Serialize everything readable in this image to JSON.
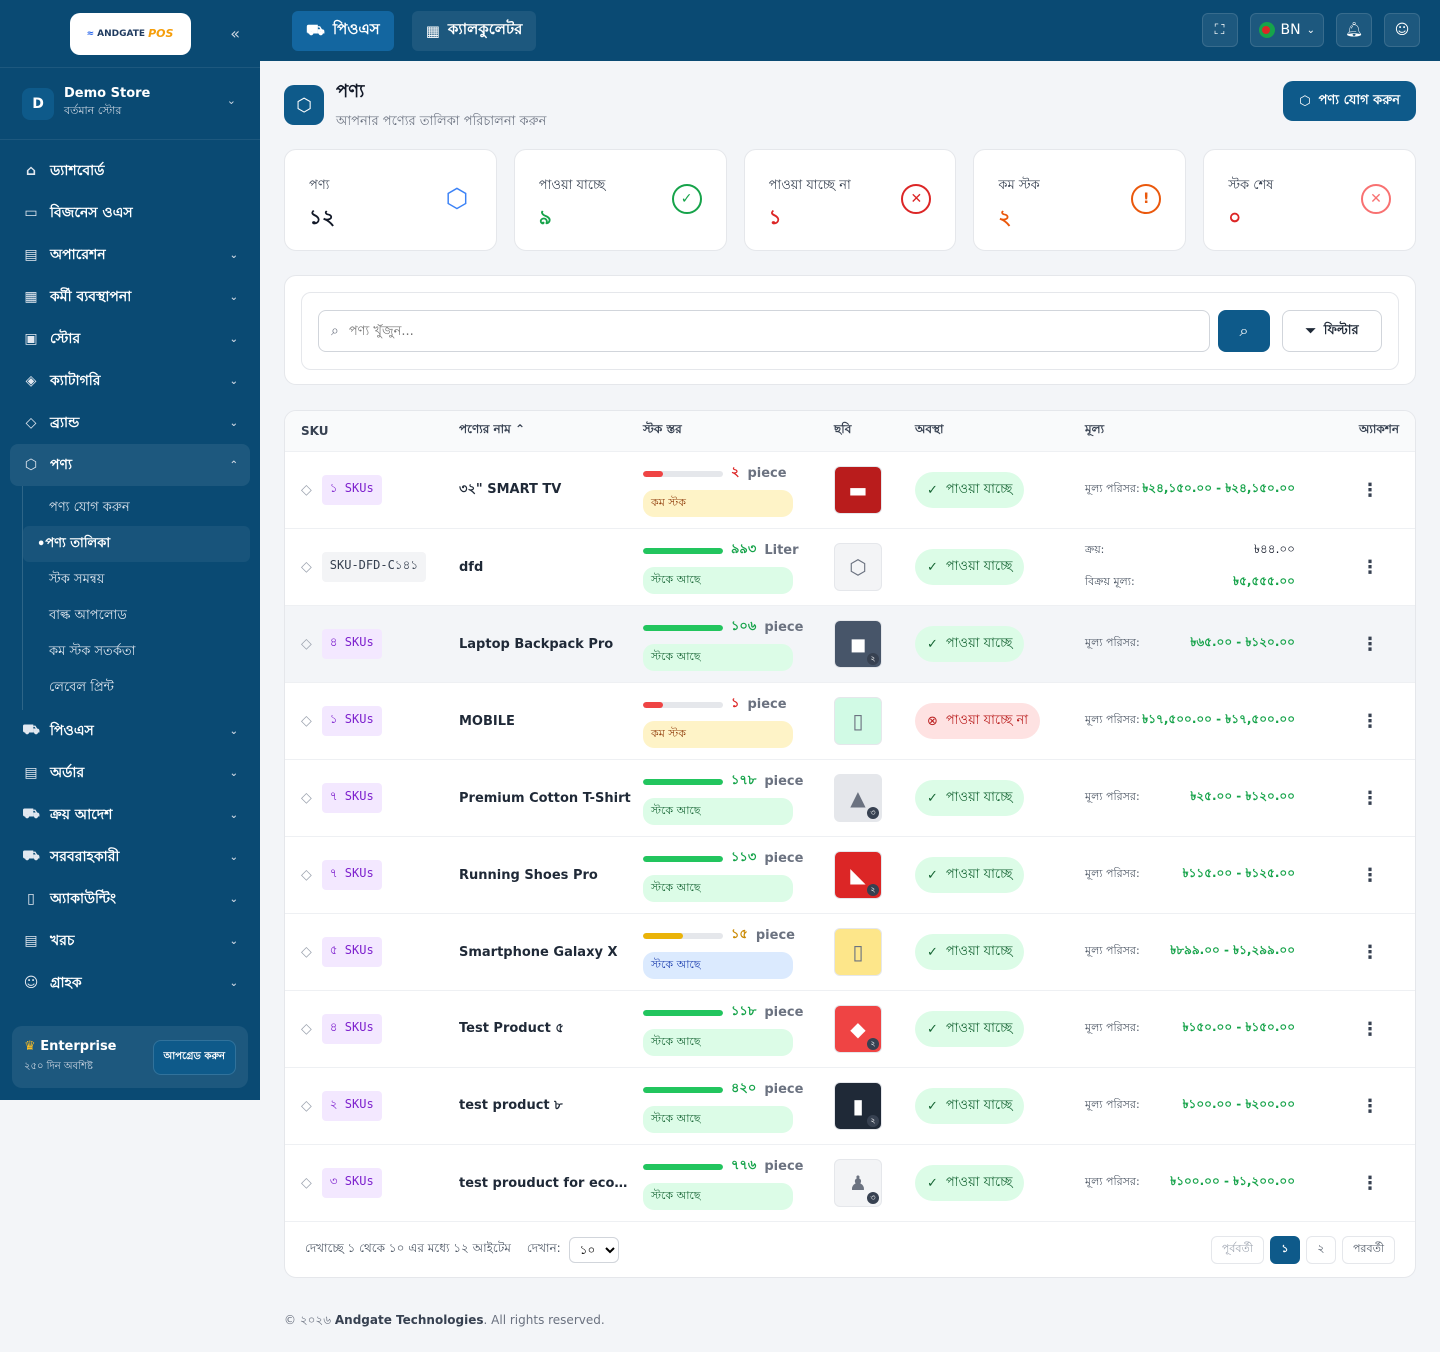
{
  "sidebar": {
    "logo_text": "ANDGATE",
    "logo_pos": "POS",
    "store": {
      "avatar": "D",
      "name": "Demo Store",
      "sub": "বর্তমান স্টোর"
    },
    "nav": [
      {
        "label": "ড্যাশবোর্ড",
        "icon": "home-icon",
        "glyph": "⌂"
      },
      {
        "label": "বিজনেস ওএস",
        "icon": "briefcase-icon",
        "glyph": "▭"
      },
      {
        "label": "অপারেশন",
        "icon": "receipt-icon",
        "glyph": "▤"
      },
      {
        "label": "কর্মী ব্যবস্থাপনা",
        "icon": "calendar-icon",
        "glyph": "▦"
      },
      {
        "label": "স্টোর",
        "icon": "store-icon",
        "glyph": "▣"
      },
      {
        "label": "ক্যাটাগরি",
        "icon": "layers-icon",
        "glyph": "◈"
      },
      {
        "label": "ব্র্যান্ড",
        "icon": "tag-icon",
        "glyph": "◇"
      },
      {
        "label": "পণ্য",
        "icon": "box-icon",
        "glyph": "⬡"
      }
    ],
    "product_sub": [
      "পণ্য যোগ করুন",
      "পণ্য তালিকা",
      "স্টক সমন্বয়",
      "বাল্ক আপলোড",
      "কম স্টক সতর্কতা",
      "লেবেল প্রিন্ট"
    ],
    "nav_after": [
      {
        "label": "পিওএস",
        "icon": "cart-icon",
        "glyph": "⛟"
      },
      {
        "label": "অর্ডার",
        "icon": "document-icon",
        "glyph": "▤"
      },
      {
        "label": "ক্রয় আদেশ",
        "icon": "cart-icon",
        "glyph": "⛟"
      },
      {
        "label": "সরবরাহকারী",
        "icon": "truck-icon",
        "glyph": "⛟"
      },
      {
        "label": "অ্যাকাউন্টিং",
        "icon": "book-icon",
        "glyph": "▯"
      },
      {
        "label": "খরচ",
        "icon": "receipt-icon",
        "glyph": "▤"
      },
      {
        "label": "গ্রাহক",
        "icon": "users-icon",
        "glyph": "☺"
      }
    ],
    "plan": {
      "name": "Enterprise",
      "sub": "২৫০ দিন অবশিষ্ট",
      "upgrade": "আপগ্রেড করুন"
    }
  },
  "topbar": {
    "tabs": [
      "পিওএস",
      "ক্যালকুলেটর"
    ],
    "lang": "BN"
  },
  "page": {
    "title": "পণ্য",
    "subtitle": "আপনার পণ্যের তালিকা পরিচালনা করুন",
    "add_label": "পণ্য যোগ করুন"
  },
  "stats": [
    {
      "label": "পণ্য",
      "value": "১২",
      "color": "#111827",
      "icon_color": "#3b82f6",
      "glyph": "⬡"
    },
    {
      "label": "পাওয়া যাচ্ছে",
      "value": "৯",
      "color": "#16a34a",
      "icon_color": "#16a34a",
      "glyph": "✓"
    },
    {
      "label": "পাওয়া যাচ্ছে না",
      "value": "১",
      "color": "#dc2626",
      "icon_color": "#dc2626",
      "glyph": "✕"
    },
    {
      "label": "কম স্টক",
      "value": "২",
      "color": "#ea580c",
      "icon_color": "#ea580c",
      "glyph": "!"
    },
    {
      "label": "স্টক শেষ",
      "value": "০",
      "color": "#dc2626",
      "icon_color": "#f87171",
      "glyph": "✕"
    }
  ],
  "search": {
    "placeholder": "পণ্য খুঁজুন...",
    "filter": "ফিল্টার"
  },
  "table": {
    "headers": {
      "sku": "SKU",
      "name": "পণ্যের নাম",
      "stock": "স্টক স্তর",
      "image": "ছবি",
      "status": "অবস্থা",
      "price": "মূল্য",
      "action": "অ্যাকশন"
    },
    "rows": [
      {
        "sku": "১ SKUs",
        "name": "৩২\" SMART TV",
        "qty": "২",
        "unit": "piece",
        "level": 0.25,
        "bar": "#ef4444",
        "pill": "কম স্টক",
        "pill_bg": "#fef3c7",
        "pill_fg": "#92400e",
        "thumb": "▬",
        "thumb_bg": "#b91c1c",
        "count": "",
        "status": "পাওয়া যাচ্ছে",
        "ok": true,
        "price_label": "মূল্য পরিসর:",
        "price": "৳২৪,১৫০.০০ - ৳২৪,১৫০.০০"
      },
      {
        "sku": "SKU-DFD-C১৪১",
        "plain": true,
        "name": "dfd",
        "qty": "৯৯৩",
        "unit": "Liter",
        "level": 1.0,
        "bar": "#22c55e",
        "pill": "স্টকে আছে",
        "pill_bg": "#dcfce7",
        "pill_fg": "#166534",
        "thumb": "⬡",
        "thumb_bg": "#f3f4f6",
        "count": "",
        "status": "পাওয়া যাচ্ছে",
        "ok": true,
        "buy_label": "ক্রয়:",
        "buy": "৳৪৪.০০",
        "sell_label": "বিক্রয় মূল্য:",
        "sell": "৳৫,৫৫৫.০০"
      },
      {
        "sku": "৪ SKUs",
        "name": "Laptop Backpack Pro",
        "qty": "১০৬",
        "unit": "piece",
        "level": 1.0,
        "bar": "#22c55e",
        "pill": "স্টকে আছে",
        "pill_bg": "#dcfce7",
        "pill_fg": "#166534",
        "thumb": "◼",
        "thumb_bg": "#475569",
        "count": "২",
        "status": "পাওয়া যাচ্ছে",
        "ok": true,
        "hl": true,
        "price_label": "মূল্য পরিসর:",
        "price": "৳৬৫.০০ - ৳১২০.০০"
      },
      {
        "sku": "১ SKUs",
        "name": "MOBILE",
        "qty": "১",
        "unit": "piece",
        "level": 0.25,
        "bar": "#ef4444",
        "pill": "কম স্টক",
        "pill_bg": "#fef3c7",
        "pill_fg": "#92400e",
        "thumb": "▯",
        "thumb_bg": "#d1fae5",
        "count": "",
        "status": "পাওয়া যাচ্ছে না",
        "ok": false,
        "price_label": "মূল্য পরিসর:",
        "price": "৳১৭,৫০০.০০ - ৳১৭,৫০০.০০"
      },
      {
        "sku": "৭ SKUs",
        "name": "Premium Cotton T-Shirt",
        "qty": "১৭৮",
        "unit": "piece",
        "level": 1.0,
        "bar": "#22c55e",
        "pill": "স্টকে আছে",
        "pill_bg": "#dcfce7",
        "pill_fg": "#166534",
        "thumb": "▲",
        "thumb_bg": "#e5e7eb",
        "count": "৩",
        "status": "পাওয়া যাচ্ছে",
        "ok": true,
        "price_label": "মূল্য পরিসর:",
        "price": "৳২৫.০০ - ৳১২০.০০"
      },
      {
        "sku": "৭ SKUs",
        "name": "Running Shoes Pro",
        "qty": "১১৩",
        "unit": "piece",
        "level": 1.0,
        "bar": "#22c55e",
        "pill": "স্টকে আছে",
        "pill_bg": "#dcfce7",
        "pill_fg": "#166534",
        "thumb": "◣",
        "thumb_bg": "#dc2626",
        "count": "২",
        "status": "পাওয়া যাচ্ছে",
        "ok": true,
        "price_label": "মূল্য পরিসর:",
        "price": "৳১১৫.০০ - ৳১২৫.০০"
      },
      {
        "sku": "৫ SKUs",
        "name": "Smartphone Galaxy X",
        "qty": "১৫",
        "unit": "piece",
        "level": 0.5,
        "bar": "#eab308",
        "pill": "স্টকে আছে",
        "pill_bg": "#dbeafe",
        "pill_fg": "#1e40af",
        "thumb": "▯",
        "thumb_bg": "#fde68a",
        "count": "",
        "status": "পাওয়া যাচ্ছে",
        "ok": true,
        "price_label": "মূল্য পরিসর:",
        "price": "৳৮৯৯.০০ - ৳১,২৯৯.০০"
      },
      {
        "sku": "৪ SKUs",
        "name": "Test Product ৫",
        "qty": "১১৮",
        "unit": "piece",
        "level": 1.0,
        "bar": "#22c55e",
        "pill": "স্টকে আছে",
        "pill_bg": "#dcfce7",
        "pill_fg": "#166534",
        "thumb": "◆",
        "thumb_bg": "#ef4444",
        "count": "২",
        "status": "পাওয়া যাচ্ছে",
        "ok": true,
        "price_label": "মূল্য পরিসর:",
        "price": "৳১৫০.০০ - ৳১৫০.০০"
      },
      {
        "sku": "২ SKUs",
        "name": "test product ৮",
        "qty": "৪২০",
        "unit": "piece",
        "level": 1.0,
        "bar": "#22c55e",
        "pill": "স্টকে আছে",
        "pill_bg": "#dcfce7",
        "pill_fg": "#166534",
        "thumb": "▮",
        "thumb_bg": "#1f2937",
        "count": "২",
        "status": "পাওয়া যাচ্ছে",
        "ok": true,
        "price_label": "মূল্য পরিসর:",
        "price": "৳১০০.০০ - ৳২০০.০০"
      },
      {
        "sku": "৩ SKUs",
        "name": "test prouduct for ecommerce",
        "qty": "৭৭৬",
        "unit": "piece",
        "level": 1.0,
        "bar": "#22c55e",
        "pill": "স্টকে আছে",
        "pill_bg": "#dcfce7",
        "pill_fg": "#166534",
        "thumb": "♟",
        "thumb_bg": "#f3f4f6",
        "count": "৩",
        "status": "পাওয়া যাচ্ছে",
        "ok": true,
        "price_label": "মূল্য পরিসর:",
        "price": "৳১০০.০০ - ৳১,২০০.০০"
      }
    ],
    "footer": {
      "showing": "দেখাচ্ছে ১ থেকে ১০ এর মধ্যে ১২ আইটেম",
      "show_label": "দেখান:",
      "per_page": "১০",
      "prev": "পূর্ববর্তী",
      "pages": [
        "১",
        "২"
      ],
      "next": "পরবর্তী"
    }
  },
  "footer": {
    "prefix": "© ২০২৬",
    "company": "Andgate Technologies",
    "suffix": ". All rights reserved."
  }
}
